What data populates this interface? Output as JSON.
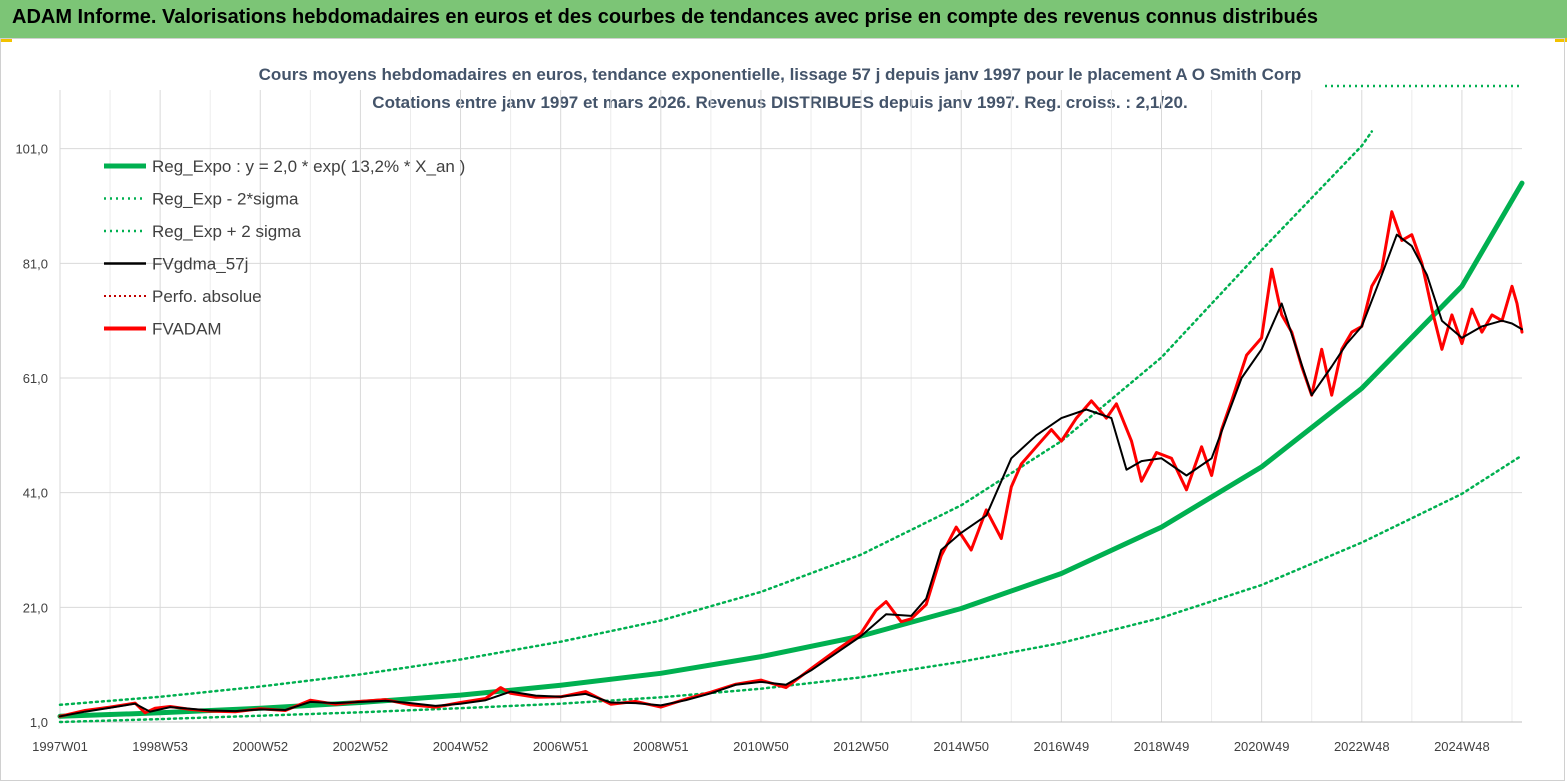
{
  "header": {
    "title": "ADAM Informe. Valorisations hebdomadaires en euros et des courbes de tendances avec prise en compte des revenus connus distribués"
  },
  "colors": {
    "banner": "#7cc576",
    "reg": "#00b050",
    "fvadam": "#ff0000",
    "fvgdma": "#000000",
    "grid": "#d9d9d9"
  },
  "chart_data": {
    "type": "line",
    "title": "Cours moyens hebdomadaires en euros, tendance exponentielle, lissage 57 j depuis janv 1997 pour le placement A O Smith Corp",
    "subtitle": "Cotations entre janv 1997 et mars 2026. Revenus DISTRIBUES depuis janv 1997. Reg. croiss. : 2,1/20.",
    "xlabel": "",
    "ylabel": "",
    "ylim": [
      1,
      106
    ],
    "xlim": [
      1997.0,
      2026.2
    ],
    "y_ticks": [
      "1,0",
      "21,0",
      "41,0",
      "61,0",
      "81,0",
      "101,0"
    ],
    "y_tick_values": [
      1,
      21,
      41,
      61,
      81,
      101
    ],
    "x_ticks": [
      "1997W01",
      "1998W53",
      "2000W52",
      "2002W52",
      "2004W52",
      "2006W51",
      "2008W51",
      "2010W50",
      "2012W50",
      "2014W50",
      "2016W49",
      "2018W49",
      "2020W49",
      "2022W48",
      "2024W48"
    ],
    "x_tick_values": [
      1997.0,
      1999.0,
      2001.0,
      2003.0,
      2005.0,
      2007.0,
      2009.0,
      2011.0,
      2013.0,
      2015.0,
      2017.0,
      2019.0,
      2021.0,
      2023.0,
      2025.0
    ],
    "grid": true,
    "legend_position": "top-left",
    "legend": [
      {
        "label": "Reg_Expo : y = 2,0 * exp( 13,2% *  X_an )",
        "style": "thick-solid",
        "color": "#00b050"
      },
      {
        "label": "Reg_Exp - 2*sigma",
        "style": "dotted",
        "color": "#00b050"
      },
      {
        "label": "Reg_Exp + 2 sigma",
        "style": "dotted",
        "color": "#00b050"
      },
      {
        "label": "FVgdma_57j",
        "style": "solid",
        "color": "#000000"
      },
      {
        "label": "Perfo. absolue",
        "style": "dotted",
        "color": "#c00000"
      },
      {
        "label": "FVADAM",
        "style": "thick-solid",
        "color": "#ff0000"
      }
    ],
    "series": [
      {
        "name": "Reg_Expo : y = 2,0 * exp( 13,2% *  X_an )",
        "x": [
          1997.0,
          1999.0,
          2001.0,
          2003.0,
          2005.0,
          2007.0,
          2009.0,
          2011.0,
          2013.0,
          2015.0,
          2017.0,
          2019.0,
          2021.0,
          2023.0,
          2025.0,
          2026.2
        ],
        "values": [
          2.0,
          2.6,
          3.4,
          4.4,
          5.7,
          7.4,
          9.5,
          12.4,
          16.0,
          20.8,
          26.9,
          35.0,
          45.5,
          59.2,
          77.0,
          95.0
        ]
      },
      {
        "name": "Reg_Exp - 2*sigma",
        "x": [
          1997.0,
          1999.0,
          2001.0,
          2003.0,
          2005.0,
          2007.0,
          2009.0,
          2011.0,
          2013.0,
          2015.0,
          2017.0,
          2019.0,
          2021.0,
          2023.0,
          2025.0,
          2026.2
        ],
        "values": [
          1.0,
          1.5,
          2.1,
          2.7,
          3.4,
          4.2,
          5.3,
          6.8,
          8.8,
          11.5,
          14.8,
          19.2,
          24.9,
          32.3,
          40.8,
          47.5
        ]
      },
      {
        "name": "Reg_Exp + 2 sigma",
        "x": [
          1997.0,
          1999.0,
          2001.0,
          2003.0,
          2005.0,
          2007.0,
          2009.0,
          2011.0,
          2013.0,
          2015.0,
          2017.0,
          2019.0,
          2021.0,
          2023.0,
          2023.2
        ],
        "values": [
          4.0,
          5.4,
          7.2,
          9.3,
          11.9,
          15.0,
          18.7,
          23.7,
          30.2,
          38.8,
          50.0,
          64.6,
          83.3,
          101.5,
          104.0
        ]
      },
      {
        "name": "FVgdma_57j",
        "x": [
          1997.0,
          1997.5,
          1998.0,
          1998.5,
          1998.8,
          1999.2,
          1999.6,
          2000.0,
          2000.5,
          2001.0,
          2001.5,
          2002.0,
          2002.5,
          2003.0,
          2003.5,
          2004.0,
          2004.5,
          2005.0,
          2005.5,
          2006.0,
          2006.5,
          2007.0,
          2007.5,
          2008.0,
          2008.5,
          2009.0,
          2009.5,
          2010.0,
          2010.5,
          2011.0,
          2011.5,
          2012.0,
          2012.5,
          2013.0,
          2013.5,
          2014.0,
          2014.3,
          2014.6,
          2015.0,
          2015.5,
          2016.0,
          2016.5,
          2017.0,
          2017.5,
          2018.0,
          2018.3,
          2018.6,
          2019.0,
          2019.5,
          2020.0,
          2020.3,
          2020.6,
          2021.0,
          2021.4,
          2021.7,
          2022.0,
          2022.4,
          2022.7,
          2023.0,
          2023.4,
          2023.7,
          2024.0,
          2024.3,
          2024.6,
          2025.0,
          2025.4,
          2025.8,
          2026.0,
          2026.2
        ],
        "values": [
          2.0,
          2.8,
          3.5,
          4.2,
          2.8,
          3.6,
          3.3,
          3.0,
          2.9,
          3.2,
          3.1,
          4.5,
          4.3,
          4.5,
          4.7,
          4.3,
          3.8,
          4.2,
          4.8,
          6.3,
          5.6,
          5.4,
          5.9,
          4.4,
          4.3,
          3.9,
          4.8,
          6.0,
          7.5,
          8.0,
          7.5,
          10.0,
          13.0,
          16.0,
          19.8,
          19.5,
          22.5,
          31.0,
          34.0,
          37.0,
          47.0,
          51.0,
          54.0,
          55.5,
          54.0,
          45.0,
          46.5,
          47.0,
          44.0,
          47.0,
          54.0,
          61.0,
          66.0,
          74.0,
          66.0,
          58.0,
          63.0,
          67.0,
          70.0,
          79.0,
          86.0,
          84.0,
          79.0,
          71.0,
          68.0,
          70.0,
          71.0,
          70.5,
          69.5
        ]
      },
      {
        "name": "FVADAM",
        "x": [
          1997.0,
          1997.5,
          1998.0,
          1998.5,
          1998.7,
          1998.9,
          1999.2,
          1999.6,
          2000.0,
          2000.5,
          2001.0,
          2001.5,
          2002.0,
          2002.5,
          2003.0,
          2003.5,
          2004.0,
          2004.5,
          2005.0,
          2005.5,
          2005.8,
          2006.0,
          2006.5,
          2007.0,
          2007.5,
          2008.0,
          2008.5,
          2009.0,
          2009.5,
          2010.0,
          2010.5,
          2011.0,
          2011.5,
          2012.0,
          2012.5,
          2013.0,
          2013.3,
          2013.5,
          2013.8,
          2014.0,
          2014.3,
          2014.6,
          2014.9,
          2015.2,
          2015.5,
          2015.8,
          2016.0,
          2016.2,
          2016.5,
          2016.8,
          2017.0,
          2017.3,
          2017.6,
          2017.9,
          2018.1,
          2018.4,
          2018.6,
          2018.9,
          2019.2,
          2019.5,
          2019.8,
          2020.0,
          2020.2,
          2020.4,
          2020.7,
          2021.0,
          2021.2,
          2021.4,
          2021.6,
          2021.8,
          2022.0,
          2022.2,
          2022.4,
          2022.6,
          2022.8,
          2023.0,
          2023.2,
          2023.4,
          2023.6,
          2023.8,
          2024.0,
          2024.2,
          2024.4,
          2024.6,
          2024.8,
          2025.0,
          2025.2,
          2025.4,
          2025.6,
          2025.8,
          2026.0,
          2026.1,
          2026.2
        ],
        "values": [
          2.0,
          3.0,
          3.6,
          4.3,
          2.6,
          3.4,
          3.7,
          3.2,
          2.9,
          2.8,
          3.3,
          3.0,
          4.8,
          4.1,
          4.6,
          4.9,
          4.0,
          3.6,
          4.4,
          5.1,
          7.0,
          6.0,
          5.3,
          5.4,
          6.3,
          4.1,
          4.6,
          3.6,
          5.0,
          6.2,
          7.6,
          8.3,
          7.0,
          10.3,
          13.5,
          16.5,
          20.5,
          22.0,
          18.5,
          19.0,
          21.5,
          30.0,
          35.0,
          31.0,
          38.0,
          33.0,
          42.0,
          46.0,
          49.0,
          52.0,
          50.0,
          54.0,
          57.0,
          54.0,
          56.5,
          50.0,
          43.0,
          48.0,
          47.0,
          41.5,
          49.0,
          44.0,
          52.0,
          57.0,
          65.0,
          68.0,
          80.0,
          72.0,
          69.0,
          63.0,
          58.0,
          66.0,
          58.0,
          66.0,
          69.0,
          70.0,
          77.0,
          80.0,
          90.0,
          85.0,
          86.0,
          81.0,
          73.0,
          66.0,
          72.0,
          67.0,
          73.0,
          69.0,
          72.0,
          71.0,
          77.0,
          74.0,
          69.0
        ]
      }
    ]
  }
}
